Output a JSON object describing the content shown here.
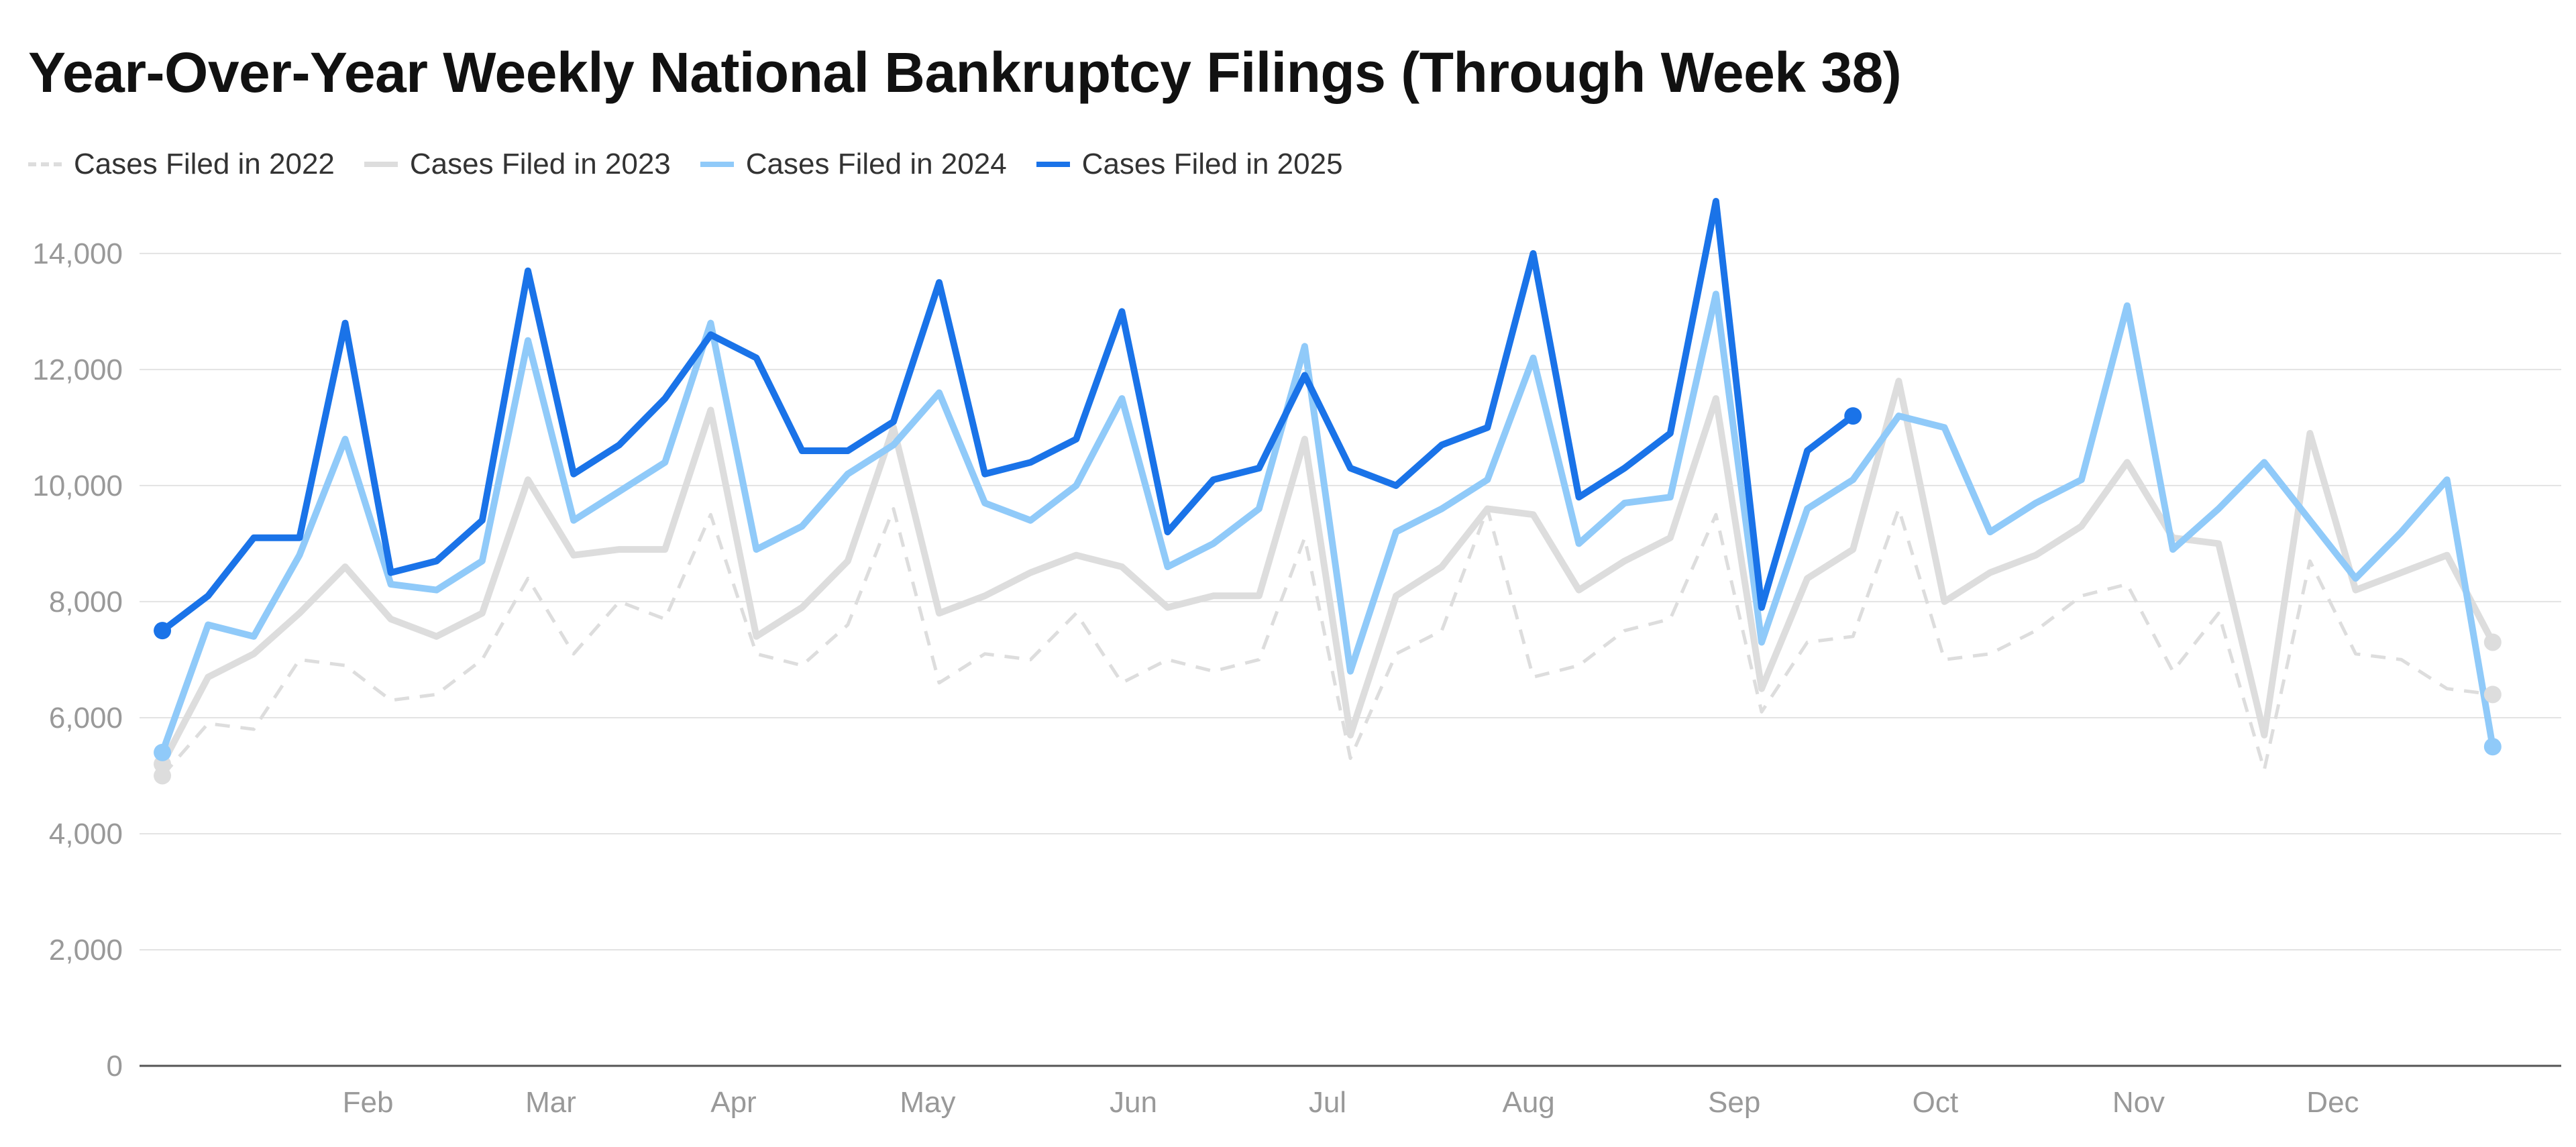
{
  "title": "Year-Over-Year Weekly National Bankruptcy Filings (Through Week 38)",
  "chart_data": {
    "type": "line",
    "title": "Year-Over-Year Weekly National Bankruptcy Filings (Through Week 38)",
    "xlabel": "",
    "ylabel": "",
    "x_tick_labels": [
      "Feb",
      "Mar",
      "Apr",
      "May",
      "Jun",
      "Jul",
      "Aug",
      "Sep",
      "Oct",
      "Nov",
      "Dec"
    ],
    "x_tick_weeks": [
      5.5,
      9.5,
      13.5,
      17.75,
      22.25,
      26.5,
      30.9,
      35.4,
      39.8,
      44.25,
      48.5
    ],
    "y_ticks": [
      0,
      2000,
      4000,
      6000,
      8000,
      10000,
      12000,
      14000
    ],
    "y_tick_labels": [
      "0",
      "2,000",
      "4,000",
      "6,000",
      "8,000",
      "10,000",
      "12,000",
      "14,000"
    ],
    "ylim": [
      0,
      14900
    ],
    "xlim": [
      0.5,
      53.5
    ],
    "grid": true,
    "legend_position": "top-left",
    "series": [
      {
        "name": "Cases Filed in 2022",
        "color": "#dddddd",
        "style": "dashed",
        "values": [
          5000,
          5900,
          5800,
          7000,
          6900,
          6300,
          6400,
          7000,
          8400,
          7100,
          8000,
          7700,
          9500,
          7100,
          6900,
          7600,
          9600,
          6600,
          7100,
          7000,
          7800,
          6600,
          7000,
          6800,
          7000,
          9100,
          5300,
          7100,
          7500,
          9600,
          6700,
          6900,
          7500,
          7700,
          9500,
          6100,
          7300,
          7400,
          9600,
          7000,
          7100,
          7500,
          8100,
          8300,
          6800,
          7800,
          5100,
          8700,
          7100,
          7000,
          6500,
          6400
        ]
      },
      {
        "name": "Cases Filed in 2023",
        "color": "#dddddd",
        "style": "solid",
        "values": [
          5200,
          6700,
          7100,
          7800,
          8600,
          7700,
          7400,
          7800,
          10100,
          8800,
          8900,
          8900,
          11300,
          7400,
          7900,
          8700,
          11000,
          7800,
          8100,
          8500,
          8800,
          8600,
          7900,
          8100,
          8100,
          10800,
          5700,
          8100,
          8600,
          9600,
          9500,
          8200,
          8700,
          9100,
          11500,
          6500,
          8400,
          8900,
          11800,
          8000,
          8500,
          8800,
          9300,
          10400,
          9100,
          9000,
          5700,
          10900,
          8200,
          8500,
          8800,
          7300
        ]
      },
      {
        "name": "Cases Filed in 2024",
        "color": "#90caf9",
        "style": "solid",
        "values": [
          5400,
          7600,
          7400,
          8800,
          10800,
          8300,
          8200,
          8700,
          12500,
          9400,
          9900,
          10400,
          12800,
          8900,
          9300,
          10200,
          10700,
          11600,
          9700,
          9400,
          10000,
          11500,
          8600,
          9000,
          9600,
          12400,
          6800,
          9200,
          9600,
          10100,
          12200,
          9000,
          9700,
          9800,
          13300,
          7300,
          9600,
          10100,
          11200,
          11000,
          9200,
          9700,
          10100,
          13100,
          8900,
          9600,
          10400,
          9400,
          8400,
          9200,
          10100,
          5500
        ]
      },
      {
        "name": "Cases Filed in 2025",
        "color": "#1a73e8",
        "style": "solid",
        "values": [
          7500,
          8100,
          9100,
          9100,
          12800,
          8500,
          8700,
          9400,
          13700,
          10200,
          10700,
          11500,
          12600,
          12200,
          10600,
          10600,
          11100,
          13500,
          10200,
          10400,
          10800,
          13000,
          9200,
          10100,
          10300,
          11900,
          10300,
          10000,
          10700,
          11000,
          14000,
          9800,
          10300,
          10900,
          14900,
          7900,
          10600,
          11200
        ]
      }
    ]
  }
}
